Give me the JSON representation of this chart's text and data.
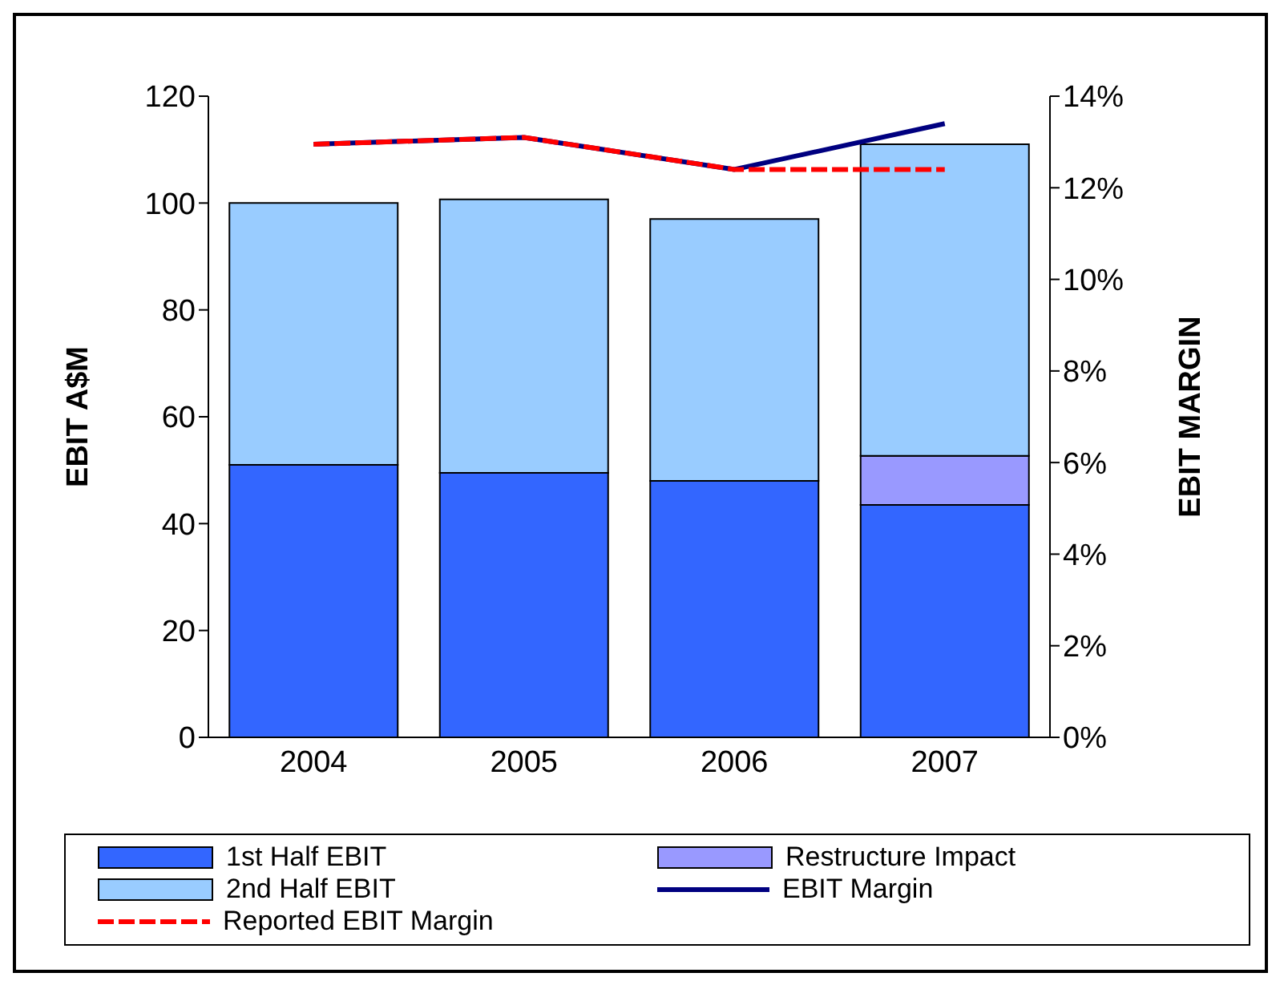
{
  "chart_data": {
    "type": "bar",
    "stacked": true,
    "ylabel": "EBIT A$M",
    "y2label": "EBIT MARGIN",
    "categories": [
      "2004",
      "2005",
      "2006",
      "2007"
    ],
    "series": [
      {
        "name": "1st Half EBIT",
        "color": "#3366ff",
        "values": [
          51,
          49.5,
          48,
          43.5
        ]
      },
      {
        "name": "Restructure Impact",
        "color": "#9999ff",
        "values": [
          null,
          null,
          null,
          9.2
        ]
      },
      {
        "name": "2nd Half EBIT",
        "color": "#99ccff",
        "values": [
          49,
          51.2,
          49,
          58.3
        ]
      },
      {
        "name": "EBIT Margin",
        "type": "line",
        "axis": "y2",
        "color": "#000080",
        "line_style": "solid",
        "values": [
          12.95,
          13.1,
          12.4,
          13.4
        ]
      },
      {
        "name": "Reported EBIT Margin",
        "type": "line",
        "axis": "y2",
        "color": "#ff0000",
        "line_style": "dashed",
        "values": [
          12.95,
          13.1,
          12.4,
          12.4
        ]
      }
    ],
    "ylim": [
      0,
      120
    ],
    "yticks": [
      0,
      20,
      40,
      60,
      80,
      100,
      120
    ],
    "y2lim": [
      0,
      14
    ],
    "y2ticks": [
      {
        "value": 0,
        "label": "0%"
      },
      {
        "value": 2,
        "label": "2%"
      },
      {
        "value": 4,
        "label": "4%"
      },
      {
        "value": 6,
        "label": "6%"
      },
      {
        "value": 8,
        "label": "8%"
      },
      {
        "value": 10,
        "label": "10%"
      },
      {
        "value": 12,
        "label": "12%"
      },
      {
        "value": 14,
        "label": "14%"
      }
    ],
    "marker": "none",
    "legend": "bottom"
  }
}
